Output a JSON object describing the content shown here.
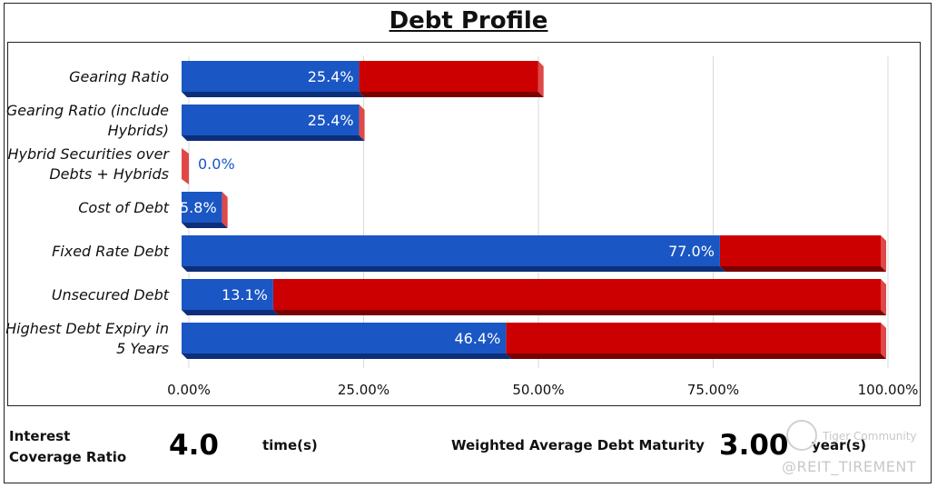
{
  "page": {
    "title": "Debt Profile"
  },
  "chart_data": {
    "type": "bar",
    "orientation": "horizontal",
    "stacked": true,
    "categories": [
      "Gearing Ratio",
      "Gearing Ratio (include Hybrids)",
      "Hybrid Securities over Debts + Hybrids",
      "Cost of Debt",
      "Fixed Rate Debt",
      "Unsecured Debt",
      "Highest Debt Expiry in 5 Years"
    ],
    "category_lines": [
      [
        "Gearing Ratio"
      ],
      [
        "Gearing Ratio (include",
        "Hybrids)"
      ],
      [
        "Hybrid Securities over",
        "Debts + Hybrids"
      ],
      [
        "Cost of Debt"
      ],
      [
        "Fixed Rate Debt"
      ],
      [
        "Unsecured Debt"
      ],
      [
        "Highest Debt Expiry in",
        "5 Years"
      ]
    ],
    "series": [
      {
        "values": [
          25.4,
          25.4,
          0.0,
          5.8,
          77.0,
          13.1,
          46.4
        ]
      },
      {
        "values": [
          25.6,
          0.0,
          0.0,
          0.0,
          23.0,
          86.9,
          53.6
        ]
      }
    ],
    "data_labels": [
      "25.4%",
      "25.4%",
      "0.0%",
      "5.8%",
      "77.0%",
      "13.1%",
      "46.4%"
    ],
    "x_ticks": [
      "0.00%",
      "25.00%",
      "50.00%",
      "75.00%",
      "100.00%"
    ],
    "xlim": [
      0,
      100
    ],
    "grid": true,
    "colors": {
      "primary": "#1a56c4",
      "primary_dark": "#0d2f7a",
      "secondary": "#cc0000",
      "secondary_dark": "#7a0000",
      "secondary_side": "#e04848",
      "label_outside": "#1a56c4"
    }
  },
  "footer": {
    "interest_coverage_label_line1": "Interest",
    "interest_coverage_label_line2": "Coverage Ratio",
    "interest_coverage_value": "4.0",
    "interest_coverage_unit": "time(s)",
    "wadm_label": "Weighted Average Debt Maturity",
    "wadm_value": "3.00",
    "wadm_unit": "year(s)"
  },
  "watermark": {
    "line1": "Tiger Community",
    "line2": "@REIT_TIREMENT"
  }
}
